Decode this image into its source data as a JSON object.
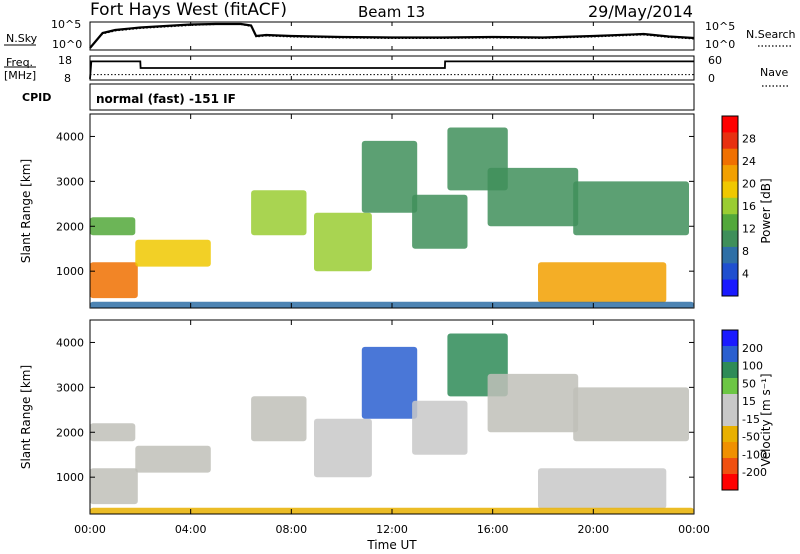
{
  "header": {
    "title": "Fort Hays West (fitACF)",
    "beam": "Beam 13",
    "date": "29/May/2014",
    "mode": "normal (fast) -151 IF"
  },
  "top_panels": {
    "nsky_label": "N.Sky",
    "nsky_ticks": [
      "10^5",
      "10^0"
    ],
    "nsearch_label": "N.Search",
    "nsearch_ticks": [
      "10^5",
      "10^0"
    ],
    "freq_label": "Freq.",
    "freq_unit": "[MHz]",
    "freq_ticks": [
      "18",
      "8"
    ],
    "nave_label": "Nave",
    "nave_ticks": [
      "60",
      "0"
    ],
    "cpid_label": "CPID"
  },
  "colors": {
    "power_scale": [
      "#1a1aff",
      "#1f4fcf",
      "#2e6fa6",
      "#3f8f5a",
      "#52a83a",
      "#9acd32",
      "#f0c800",
      "#f2a000",
      "#f07000",
      "#e83010",
      "#ff0000"
    ],
    "velocity_scale": [
      "#1a1aff",
      "#2a5fd0",
      "#2e8b57",
      "#6cc644",
      "#c8c8c8",
      "#c8c8c8",
      "#e8b000",
      "#f09000",
      "#f05010",
      "#ff0000"
    ],
    "ground_scatter": "#c0c0b8"
  },
  "chart_data": [
    {
      "type": "line",
      "name": "nsky-nsearch",
      "x_unit": "hours UT",
      "x": [
        0,
        0.5,
        1,
        2,
        3,
        4,
        5,
        6,
        6.4,
        6.6,
        7,
        8,
        10,
        12,
        14,
        16,
        18,
        20,
        22,
        23,
        24
      ],
      "series": [
        {
          "name": "N.Sky",
          "values": [
            0.2,
            3.2,
            3.8,
            4.3,
            4.6,
            4.9,
            5.0,
            5.0,
            4.7,
            2.6,
            2.8,
            2.6,
            2.4,
            2.3,
            2.3,
            2.4,
            2.3,
            2.6,
            3.0,
            2.5,
            2.2
          ]
        },
        {
          "name": "N.Search",
          "values": [
            0.2,
            3.0,
            3.6,
            4.1,
            4.4,
            4.7,
            4.9,
            4.9,
            4.5,
            2.4,
            2.6,
            2.4,
            2.2,
            2.1,
            2.1,
            2.2,
            2.1,
            2.4,
            2.8,
            2.3,
            2.0
          ]
        }
      ],
      "ylim": [
        0,
        5
      ]
    },
    {
      "type": "line",
      "name": "freq-nave",
      "x_unit": "hours UT",
      "series": [
        {
          "name": "Freq.",
          "x": [
            0,
            0.05,
            2,
            2.01,
            14.1,
            14.11,
            24
          ],
          "values": [
            8,
            16,
            16,
            13,
            13,
            16,
            16
          ]
        },
        {
          "name": "Nave",
          "x": [
            0,
            24
          ],
          "values": [
            10,
            10
          ]
        }
      ],
      "ylim": [
        8,
        18
      ]
    },
    {
      "type": "heatmap",
      "name": "power",
      "xlabel": "",
      "ylabel": "Slant Range [km]",
      "xlim": [
        0,
        24
      ],
      "ylim": [
        180,
        4500
      ],
      "yticks": [
        "1000",
        "2000",
        "3000",
        "4000"
      ],
      "colorbar_label": "Power [dB]",
      "colorbar_ticks": [
        "4",
        "8",
        "12",
        "16",
        "20",
        "24",
        "28"
      ],
      "clim": [
        0,
        30
      ],
      "regions": [
        {
          "t0": 0.0,
          "t1": 1.9,
          "r0": 400,
          "r1": 1200,
          "value": 24
        },
        {
          "t0": 0.0,
          "t1": 1.8,
          "r0": 1800,
          "r1": 2200,
          "value": 12
        },
        {
          "t0": 1.8,
          "t1": 4.8,
          "r0": 1100,
          "r1": 1700,
          "value": 18
        },
        {
          "t0": 6.4,
          "t1": 8.6,
          "r0": 1800,
          "r1": 2800,
          "value": 14
        },
        {
          "t0": 8.9,
          "t1": 11.2,
          "r0": 1000,
          "r1": 2300,
          "value": 16
        },
        {
          "t0": 10.8,
          "t1": 13.0,
          "r0": 2300,
          "r1": 3900,
          "value": 9
        },
        {
          "t0": 12.8,
          "t1": 15.0,
          "r0": 1500,
          "r1": 2700,
          "value": 10
        },
        {
          "t0": 14.2,
          "t1": 16.6,
          "r0": 2800,
          "r1": 4200,
          "value": 8
        },
        {
          "t0": 15.8,
          "t1": 19.4,
          "r0": 2000,
          "r1": 3300,
          "value": 10
        },
        {
          "t0": 19.2,
          "t1": 23.8,
          "r0": 1800,
          "r1": 3000,
          "value": 9
        },
        {
          "t0": 17.8,
          "t1": 22.9,
          "r0": 300,
          "r1": 1200,
          "value": 21
        },
        {
          "t0": 0.0,
          "t1": 24.0,
          "r0": 180,
          "r1": 320,
          "value": 6
        }
      ]
    },
    {
      "type": "heatmap",
      "name": "velocity",
      "xlabel": "Time UT",
      "ylabel": "Slant Range [km]",
      "xlim": [
        0,
        24
      ],
      "ylim": [
        180,
        4500
      ],
      "xticks": [
        "00:00",
        "04:00",
        "08:00",
        "12:00",
        "16:00",
        "20:00",
        "00:00"
      ],
      "yticks": [
        "1000",
        "2000",
        "3000",
        "4000"
      ],
      "colorbar_label": "Velocity [m s⁻¹]",
      "colorbar_ticks": [
        "200",
        "100",
        "50",
        "15",
        "-15",
        "-50",
        "-100",
        "-200"
      ],
      "clim": [
        -250,
        250
      ],
      "regions": [
        {
          "t0": 0.0,
          "t1": 1.9,
          "r0": 400,
          "r1": 1200,
          "value": 0
        },
        {
          "t0": 0.0,
          "t1": 1.8,
          "r0": 1800,
          "r1": 2200,
          "value": 0
        },
        {
          "t0": 1.8,
          "t1": 4.8,
          "r0": 1100,
          "r1": 1700,
          "value": 0
        },
        {
          "t0": 6.4,
          "t1": 8.6,
          "r0": 1800,
          "r1": 2800,
          "value": 0
        },
        {
          "t0": 8.9,
          "t1": 11.2,
          "r0": 1000,
          "r1": 2300,
          "value": 40
        },
        {
          "t0": 10.8,
          "t1": 13.0,
          "r0": 2300,
          "r1": 3900,
          "value": 180
        },
        {
          "t0": 12.8,
          "t1": 15.0,
          "r0": 1500,
          "r1": 2700,
          "value": 30
        },
        {
          "t0": 14.2,
          "t1": 16.6,
          "r0": 2800,
          "r1": 4200,
          "value": 150
        },
        {
          "t0": 15.8,
          "t1": 19.4,
          "r0": 2000,
          "r1": 3300,
          "value": 0
        },
        {
          "t0": 19.2,
          "t1": 23.8,
          "r0": 1800,
          "r1": 3000,
          "value": 0
        },
        {
          "t0": 17.8,
          "t1": 22.9,
          "r0": 300,
          "r1": 1200,
          "value": -40
        },
        {
          "t0": 0.0,
          "t1": 24.0,
          "r0": 180,
          "r1": 320,
          "value": -60
        }
      ]
    }
  ]
}
